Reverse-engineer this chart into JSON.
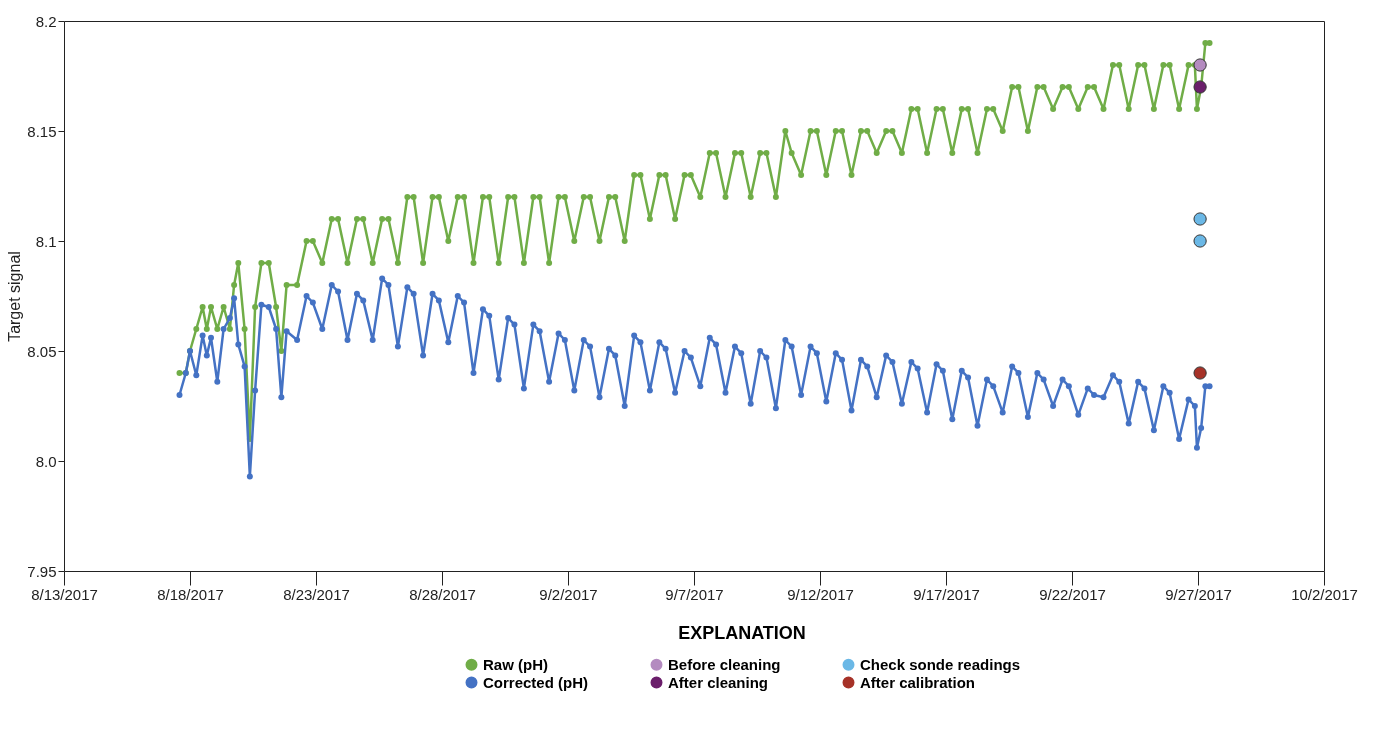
{
  "chart_data": {
    "type": "line",
    "ylabel": "Target signal",
    "legend_title": "EXPLANATION",
    "legend": "bottom",
    "grid": false,
    "marker": "circle",
    "line_style": "solid",
    "xlim": [
      "2017-08-13",
      "2017-10-02"
    ],
    "xticks": [
      {
        "value": "2017-08-13",
        "label": "8/13/2017"
      },
      {
        "value": "2017-08-18",
        "label": "8/18/2017"
      },
      {
        "value": "2017-08-23",
        "label": "8/23/2017"
      },
      {
        "value": "2017-08-28",
        "label": "8/28/2017"
      },
      {
        "value": "2017-09-02",
        "label": "9/2/2017"
      },
      {
        "value": "2017-09-07",
        "label": "9/7/2017"
      },
      {
        "value": "2017-09-12",
        "label": "9/12/2017"
      },
      {
        "value": "2017-09-17",
        "label": "9/17/2017"
      },
      {
        "value": "2017-09-22",
        "label": "9/22/2017"
      },
      {
        "value": "2017-09-27",
        "label": "9/27/2017"
      },
      {
        "value": "2017-10-02",
        "label": "10/2/2017"
      }
    ],
    "ylim": [
      7.95,
      8.2
    ],
    "yticks": [
      7.95,
      {
        "value": 8,
        "label": "8.0"
      },
      8.05,
      8.1,
      8.15,
      8.2
    ],
    "x": [
      "2017-08-17T14:00",
      "2017-08-17T20:00",
      "2017-08-18T00:00",
      "2017-08-18T06:00",
      "2017-08-18T12:00",
      "2017-08-18T16:00",
      "2017-08-18T20:00",
      "2017-08-19T02:00",
      "2017-08-19T08:00",
      "2017-08-19T14:00",
      "2017-08-19T18:00",
      "2017-08-19T22:00",
      "2017-08-20T04:00",
      "2017-08-20T09:00",
      "2017-08-20T14:00",
      "2017-08-20T20:00",
      "2017-08-21T03:00",
      "2017-08-21T10:00",
      "2017-08-21T15:00",
      "2017-08-21T20:00",
      "2017-08-22T06:00",
      "2017-08-22T15:00",
      "2017-08-22T21:00",
      "2017-08-23T06:00",
      "2017-08-23T15:00",
      "2017-08-23T21:00",
      "2017-08-24T06:00",
      "2017-08-24T15:00",
      "2017-08-24T21:00",
      "2017-08-25T06:00",
      "2017-08-25T15:00",
      "2017-08-25T21:00",
      "2017-08-26T06:00",
      "2017-08-26T15:00",
      "2017-08-26T21:00",
      "2017-08-27T06:00",
      "2017-08-27T15:00",
      "2017-08-27T21:00",
      "2017-08-28T06:00",
      "2017-08-28T15:00",
      "2017-08-28T21:00",
      "2017-08-29T06:00",
      "2017-08-29T15:00",
      "2017-08-29T21:00",
      "2017-08-30T06:00",
      "2017-08-30T15:00",
      "2017-08-30T21:00",
      "2017-08-31T06:00",
      "2017-08-31T15:00",
      "2017-08-31T21:00",
      "2017-09-01T06:00",
      "2017-09-01T15:00",
      "2017-09-01T21:00",
      "2017-09-02T06:00",
      "2017-09-02T15:00",
      "2017-09-02T21:00",
      "2017-09-03T06:00",
      "2017-09-03T15:00",
      "2017-09-03T21:00",
      "2017-09-04T06:00",
      "2017-09-04T15:00",
      "2017-09-04T21:00",
      "2017-09-05T06:00",
      "2017-09-05T15:00",
      "2017-09-05T21:00",
      "2017-09-06T06:00",
      "2017-09-06T15:00",
      "2017-09-06T21:00",
      "2017-09-07T06:00",
      "2017-09-07T15:00",
      "2017-09-07T21:00",
      "2017-09-08T06:00",
      "2017-09-08T15:00",
      "2017-09-08T21:00",
      "2017-09-09T06:00",
      "2017-09-09T15:00",
      "2017-09-09T21:00",
      "2017-09-10T06:00",
      "2017-09-10T15:00",
      "2017-09-10T21:00",
      "2017-09-11T06:00",
      "2017-09-11T15:00",
      "2017-09-11T21:00",
      "2017-09-12T06:00",
      "2017-09-12T15:00",
      "2017-09-12T21:00",
      "2017-09-13T06:00",
      "2017-09-13T15:00",
      "2017-09-13T21:00",
      "2017-09-14T06:00",
      "2017-09-14T15:00",
      "2017-09-14T21:00",
      "2017-09-15T06:00",
      "2017-09-15T15:00",
      "2017-09-15T21:00",
      "2017-09-16T06:00",
      "2017-09-16T15:00",
      "2017-09-16T21:00",
      "2017-09-17T06:00",
      "2017-09-17T15:00",
      "2017-09-17T21:00",
      "2017-09-18T06:00",
      "2017-09-18T15:00",
      "2017-09-18T21:00",
      "2017-09-19T06:00",
      "2017-09-19T15:00",
      "2017-09-19T21:00",
      "2017-09-20T06:00",
      "2017-09-20T15:00",
      "2017-09-20T21:00",
      "2017-09-21T06:00",
      "2017-09-21T15:00",
      "2017-09-21T21:00",
      "2017-09-22T06:00",
      "2017-09-22T15:00",
      "2017-09-22T21:00",
      "2017-09-23T06:00",
      "2017-09-23T15:00",
      "2017-09-23T21:00",
      "2017-09-24T06:00",
      "2017-09-24T15:00",
      "2017-09-24T21:00",
      "2017-09-25T06:00",
      "2017-09-25T15:00",
      "2017-09-25T21:00",
      "2017-09-26T06:00",
      "2017-09-26T15:00",
      "2017-09-26T21:00",
      "2017-09-26T23:00",
      "2017-09-27T03:00",
      "2017-09-27T07:00",
      "2017-09-27T11:00"
    ],
    "series": [
      {
        "name": "Raw (pH)",
        "color": "#70ad47",
        "values": [
          8.04,
          8.04,
          8.05,
          8.06,
          8.07,
          8.06,
          8.07,
          8.06,
          8.07,
          8.06,
          8.08,
          8.09,
          8.06,
          8.01,
          8.07,
          8.09,
          8.09,
          8.07,
          8.05,
          8.08,
          8.08,
          8.1,
          8.1,
          8.09,
          8.11,
          8.11,
          8.09,
          8.11,
          8.11,
          8.09,
          8.11,
          8.11,
          8.09,
          8.12,
          8.12,
          8.09,
          8.12,
          8.12,
          8.1,
          8.12,
          8.12,
          8.09,
          8.12,
          8.12,
          8.09,
          8.12,
          8.12,
          8.09,
          8.12,
          8.12,
          8.09,
          8.12,
          8.12,
          8.1,
          8.12,
          8.12,
          8.1,
          8.12,
          8.12,
          8.1,
          8.13,
          8.13,
          8.11,
          8.13,
          8.13,
          8.11,
          8.13,
          8.13,
          8.12,
          8.14,
          8.14,
          8.12,
          8.14,
          8.14,
          8.12,
          8.14,
          8.14,
          8.12,
          8.15,
          8.14,
          8.13,
          8.15,
          8.15,
          8.13,
          8.15,
          8.15,
          8.13,
          8.15,
          8.15,
          8.14,
          8.15,
          8.15,
          8.14,
          8.16,
          8.16,
          8.14,
          8.16,
          8.16,
          8.14,
          8.16,
          8.16,
          8.14,
          8.16,
          8.16,
          8.15,
          8.17,
          8.17,
          8.15,
          8.17,
          8.17,
          8.16,
          8.17,
          8.17,
          8.16,
          8.17,
          8.17,
          8.16,
          8.18,
          8.18,
          8.16,
          8.18,
          8.18,
          8.16,
          8.18,
          8.18,
          8.16,
          8.18,
          8.18,
          8.16,
          8.17,
          8.19,
          8.19
        ]
      },
      {
        "name": "Before cleaning",
        "type": "scatter",
        "color": "#b48bc0",
        "x": [
          "2017-09-27T02:00"
        ],
        "values": [
          8.18
        ]
      },
      {
        "name": "Check sonde readings",
        "type": "scatter",
        "color": "#6bb8e6",
        "x": [
          "2017-09-27T02:00",
          "2017-09-27T02:00"
        ],
        "values": [
          8.11,
          8.1
        ]
      },
      {
        "name": "Corrected (pH)",
        "color": "#4472c4",
        "values": [
          8.03,
          8.04,
          8.05,
          8.039,
          8.057,
          8.048,
          8.056,
          8.036,
          8.06,
          8.065,
          8.074,
          8.053,
          8.043,
          7.993,
          8.032,
          8.071,
          8.07,
          8.06,
          8.029,
          8.059,
          8.055,
          8.075,
          8.072,
          8.06,
          8.08,
          8.077,
          8.055,
          8.076,
          8.073,
          8.055,
          8.083,
          8.08,
          8.052,
          8.079,
          8.076,
          8.048,
          8.076,
          8.073,
          8.054,
          8.075,
          8.072,
          8.04,
          8.069,
          8.066,
          8.037,
          8.065,
          8.062,
          8.033,
          8.062,
          8.059,
          8.036,
          8.058,
          8.055,
          8.032,
          8.055,
          8.052,
          8.029,
          8.051,
          8.048,
          8.025,
          8.057,
          8.054,
          8.032,
          8.054,
          8.051,
          8.031,
          8.05,
          8.047,
          8.034,
          8.056,
          8.053,
          8.031,
          8.052,
          8.049,
          8.026,
          8.05,
          8.047,
          8.024,
          8.055,
          8.052,
          8.03,
          8.052,
          8.049,
          8.027,
          8.049,
          8.046,
          8.023,
          8.046,
          8.043,
          8.029,
          8.048,
          8.045,
          8.026,
          8.045,
          8.042,
          8.022,
          8.044,
          8.041,
          8.019,
          8.041,
          8.038,
          8.016,
          8.037,
          8.034,
          8.022,
          8.043,
          8.04,
          8.02,
          8.04,
          8.037,
          8.025,
          8.037,
          8.034,
          8.021,
          8.033,
          8.03,
          8.029,
          8.039,
          8.036,
          8.017,
          8.036,
          8.033,
          8.014,
          8.034,
          8.031,
          8.01,
          8.028,
          8.025,
          8.006,
          8.015,
          8.034,
          8.034
        ]
      },
      {
        "name": "After cleaning",
        "type": "scatter",
        "color": "#6b1f6b",
        "x": [
          "2017-09-27T02:00"
        ],
        "values": [
          8.17
        ]
      },
      {
        "name": "After calibration",
        "type": "scatter",
        "color": "#a63228",
        "x": [
          "2017-09-27T02:00"
        ],
        "values": [
          8.04
        ]
      }
    ]
  }
}
